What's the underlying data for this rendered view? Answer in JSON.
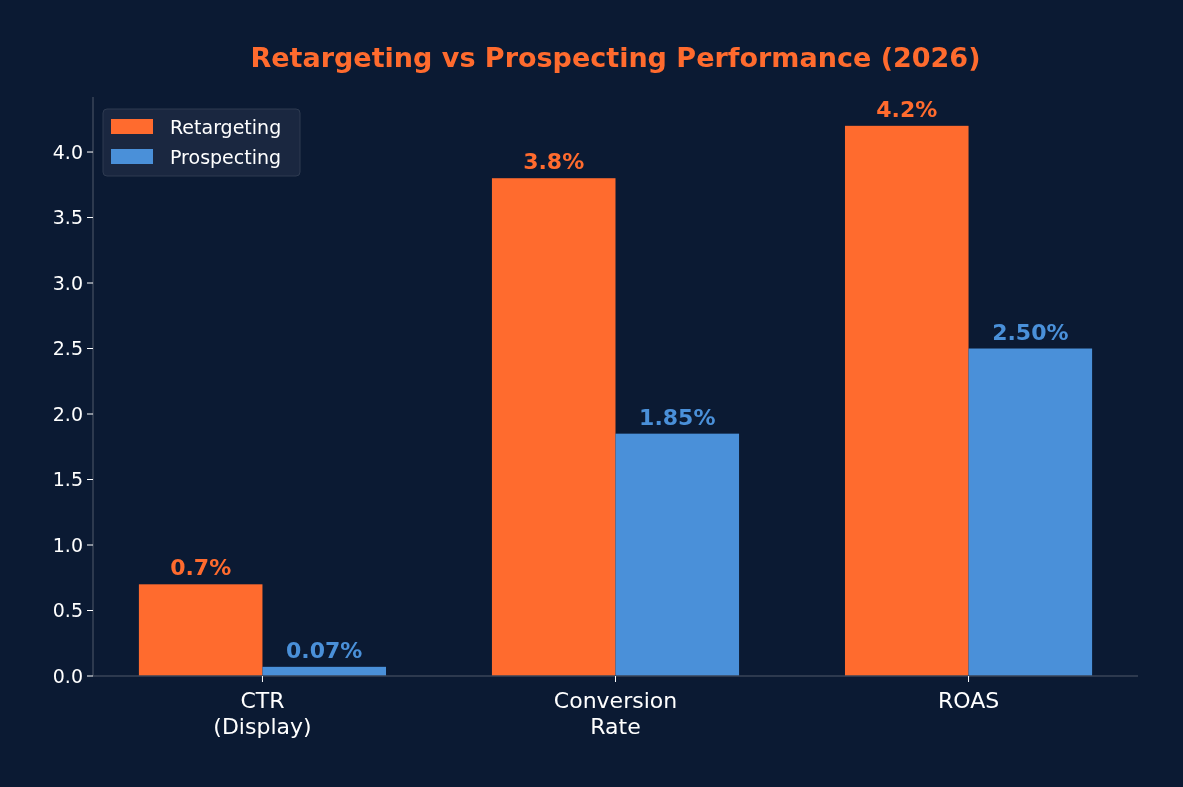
{
  "chart_data": {
    "type": "bar",
    "title": "Retargeting vs Prospecting Performance (2026)",
    "categories": [
      "CTR\n(Display)",
      "Conversion\nRate",
      "ROAS"
    ],
    "series": [
      {
        "name": "Retargeting",
        "color": "#ff6b2e",
        "values": [
          0.7,
          3.8,
          4.2
        ],
        "value_labels": [
          "0.7%",
          "3.8%",
          "4.2%"
        ]
      },
      {
        "name": "Prospecting",
        "color": "#4a90d9",
        "values": [
          0.07,
          1.85,
          2.5
        ],
        "value_labels": [
          "0.07%",
          "1.85%",
          "2.50%"
        ]
      }
    ],
    "ylim": [
      0,
      4.42
    ],
    "yticks": [
      {
        "value": 0,
        "label": "0.0"
      },
      {
        "value": 0.5,
        "label": "0.5"
      },
      {
        "value": 1,
        "label": "1.0"
      },
      {
        "value": 1.5,
        "label": "1.5"
      },
      {
        "value": 2,
        "label": "2.0"
      },
      {
        "value": 2.5,
        "label": "2.5"
      },
      {
        "value": 3,
        "label": "3.0"
      },
      {
        "value": 3.5,
        "label": "3.5"
      },
      {
        "value": 4,
        "label": "4.0"
      }
    ],
    "grid": false,
    "legend": "top left"
  }
}
